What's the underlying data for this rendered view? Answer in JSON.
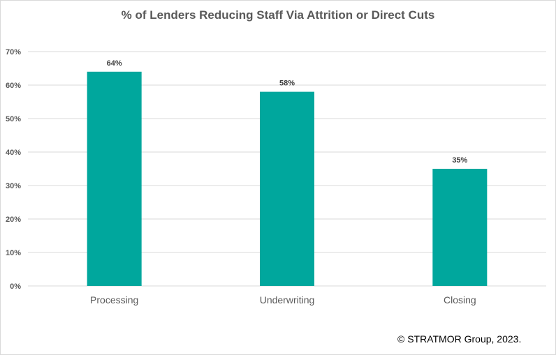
{
  "chart_data": {
    "type": "bar",
    "title": "% of Lenders Reducing Staff Via Attrition or Direct Cuts",
    "categories": [
      "Processing",
      "Underwriting",
      "Closing"
    ],
    "values": [
      64,
      58,
      35
    ],
    "data_labels": [
      "64%",
      "58%",
      "35%"
    ],
    "ylim": [
      0,
      70
    ],
    "yticks": [
      0,
      10,
      20,
      30,
      40,
      50,
      60,
      70
    ],
    "ytick_labels": [
      "0%",
      "10%",
      "20%",
      "30%",
      "40%",
      "50%",
      "60%",
      "70%"
    ],
    "grid": true,
    "legend": "none",
    "bar_color": "#00A79D",
    "gridline_color": "#d9d9d9"
  },
  "footer": {
    "copyright": "© STRATMOR Group, 2023."
  }
}
